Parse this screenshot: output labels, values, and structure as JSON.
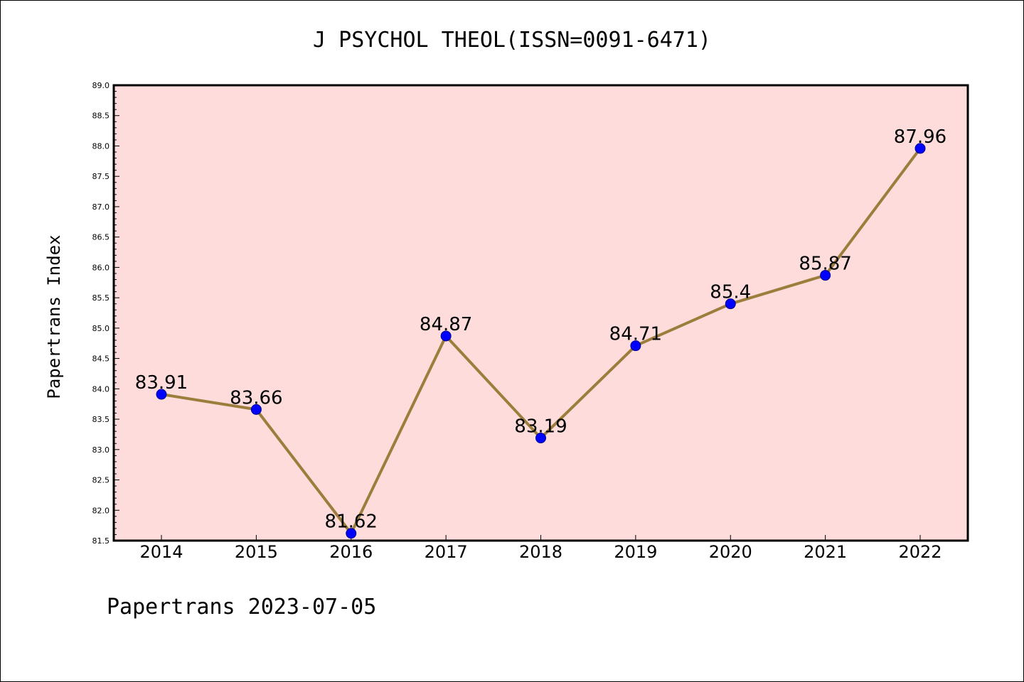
{
  "chart_data": {
    "type": "line",
    "title": "J PSYCHOL THEOL(ISSN=0091-6471)",
    "xlabel": "",
    "ylabel": "Papertrans Index",
    "footer": "Papertrans 2023-07-05",
    "categories": [
      "2014",
      "2015",
      "2016",
      "2017",
      "2018",
      "2019",
      "2020",
      "2021",
      "2022"
    ],
    "series": [
      {
        "values": [
          83.91,
          83.66,
          81.62,
          84.87,
          83.19,
          84.71,
          85.4,
          85.87,
          87.96
        ],
        "labels": [
          "83.91",
          "83.66",
          "81.62",
          "84.87",
          "83.19",
          "84.71",
          "85.4",
          "85.87",
          "87.96"
        ]
      }
    ],
    "ylim": [
      81.5,
      89.0
    ],
    "yticks": [
      "81.5",
      "82.0",
      "82.5",
      "83.0",
      "83.5",
      "84.0",
      "84.5",
      "85.0",
      "85.5",
      "86.0",
      "86.5",
      "87.0",
      "87.5",
      "88.0",
      "88.5",
      "89.0"
    ],
    "grid": false,
    "colors": {
      "plot_background": "#ffdcdc",
      "line": "#9b7e3c",
      "marker": "#0000ff"
    }
  }
}
